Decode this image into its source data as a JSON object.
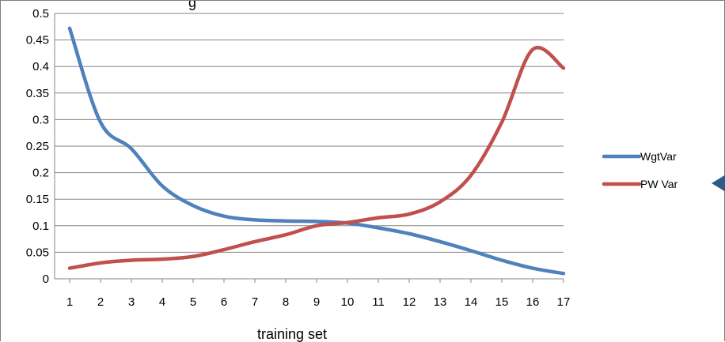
{
  "chart_data": {
    "type": "line",
    "title_fragment": "g",
    "xlabel": "training set",
    "ylabel": "",
    "categories": [
      "1",
      "2",
      "3",
      "4",
      "5",
      "6",
      "7",
      "8",
      "9",
      "10",
      "11",
      "12",
      "13",
      "14",
      "15",
      "16",
      "17"
    ],
    "y_ticks": [
      "0",
      "0.05",
      "0.1",
      "0.15",
      "0.2",
      "0.25",
      "0.3",
      "0.35",
      "0.4",
      "0.45",
      "0.5"
    ],
    "ylim": [
      0,
      0.5
    ],
    "grid": "horizontal",
    "legend_position": "right",
    "series": [
      {
        "name": "WgtVar",
        "color": "#4f81bd",
        "values": [
          0.472,
          0.295,
          0.245,
          0.175,
          0.138,
          0.118,
          0.111,
          0.109,
          0.108,
          0.105,
          0.096,
          0.085,
          0.07,
          0.053,
          0.035,
          0.02,
          0.01
        ]
      },
      {
        "name": "PW Var",
        "color": "#c0504d",
        "values": [
          0.02,
          0.03,
          0.035,
          0.037,
          0.042,
          0.055,
          0.07,
          0.083,
          0.1,
          0.106,
          0.115,
          0.122,
          0.145,
          0.195,
          0.295,
          0.432,
          0.397
        ]
      }
    ],
    "legend_marker_color": "#2e5c8a"
  }
}
